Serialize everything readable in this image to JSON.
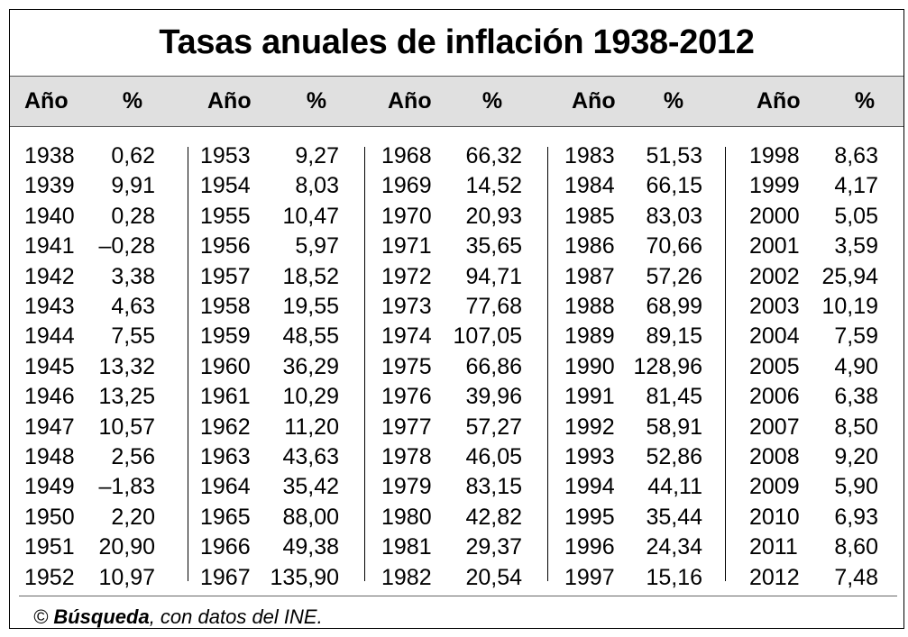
{
  "title": "Tasas anuales de inflación 1938-2012",
  "header": {
    "year_label": "Año",
    "pct_label": "%"
  },
  "columns": [
    {
      "rows": [
        {
          "year": "1938",
          "value": "0,62"
        },
        {
          "year": "1939",
          "value": "9,91"
        },
        {
          "year": "1940",
          "value": "0,28"
        },
        {
          "year": "1941",
          "value": "–0,28"
        },
        {
          "year": "1942",
          "value": "3,38"
        },
        {
          "year": "1943",
          "value": "4,63"
        },
        {
          "year": "1944",
          "value": "7,55"
        },
        {
          "year": "1945",
          "value": "13,32"
        },
        {
          "year": "1946",
          "value": "13,25"
        },
        {
          "year": "1947",
          "value": "10,57"
        },
        {
          "year": "1948",
          "value": "2,56"
        },
        {
          "year": "1949",
          "value": "–1,83"
        },
        {
          "year": "1950",
          "value": "2,20"
        },
        {
          "year": "1951",
          "value": "20,90"
        },
        {
          "year": "1952",
          "value": "10,97"
        }
      ]
    },
    {
      "rows": [
        {
          "year": "1953",
          "value": "9,27"
        },
        {
          "year": "1954",
          "value": "8,03"
        },
        {
          "year": "1955",
          "value": "10,47"
        },
        {
          "year": "1956",
          "value": "5,97"
        },
        {
          "year": "1957",
          "value": "18,52"
        },
        {
          "year": "1958",
          "value": "19,55"
        },
        {
          "year": "1959",
          "value": "48,55"
        },
        {
          "year": "1960",
          "value": "36,29"
        },
        {
          "year": "1961",
          "value": "10,29"
        },
        {
          "year": "1962",
          "value": "11,20"
        },
        {
          "year": "1963",
          "value": "43,63"
        },
        {
          "year": "1964",
          "value": "35,42"
        },
        {
          "year": "1965",
          "value": "88,00"
        },
        {
          "year": "1966",
          "value": "49,38"
        },
        {
          "year": "1967",
          "value": "135,90"
        }
      ]
    },
    {
      "rows": [
        {
          "year": "1968",
          "value": "66,32"
        },
        {
          "year": "1969",
          "value": "14,52"
        },
        {
          "year": "1970",
          "value": "20,93"
        },
        {
          "year": "1971",
          "value": "35,65"
        },
        {
          "year": "1972",
          "value": "94,71"
        },
        {
          "year": "1973",
          "value": "77,68"
        },
        {
          "year": "1974",
          "value": "107,05"
        },
        {
          "year": "1975",
          "value": "66,86"
        },
        {
          "year": "1976",
          "value": "39,96"
        },
        {
          "year": "1977",
          "value": "57,27"
        },
        {
          "year": "1978",
          "value": "46,05"
        },
        {
          "year": "1979",
          "value": "83,15"
        },
        {
          "year": "1980",
          "value": "42,82"
        },
        {
          "year": "1981",
          "value": "29,37"
        },
        {
          "year": "1982",
          "value": "20,54"
        }
      ]
    },
    {
      "rows": [
        {
          "year": "1983",
          "value": "51,53"
        },
        {
          "year": "1984",
          "value": "66,15"
        },
        {
          "year": "1985",
          "value": "83,03"
        },
        {
          "year": "1986",
          "value": "70,66"
        },
        {
          "year": "1987",
          "value": "57,26"
        },
        {
          "year": "1988",
          "value": "68,99"
        },
        {
          "year": "1989",
          "value": "89,15"
        },
        {
          "year": "1990",
          "value": "128,96"
        },
        {
          "year": "1991",
          "value": "81,45"
        },
        {
          "year": "1992",
          "value": "58,91"
        },
        {
          "year": "1993",
          "value": "52,86"
        },
        {
          "year": "1994",
          "value": "44,11"
        },
        {
          "year": "1995",
          "value": "35,44"
        },
        {
          "year": "1996",
          "value": "24,34"
        },
        {
          "year": "1997",
          "value": "15,16"
        }
      ]
    },
    {
      "rows": [
        {
          "year": "1998",
          "value": "8,63"
        },
        {
          "year": "1999",
          "value": "4,17"
        },
        {
          "year": "2000",
          "value": "5,05"
        },
        {
          "year": "2001",
          "value": "3,59"
        },
        {
          "year": "2002",
          "value": "25,94"
        },
        {
          "year": "2003",
          "value": "10,19"
        },
        {
          "year": "2004",
          "value": "7,59"
        },
        {
          "year": "2005",
          "value": "4,90"
        },
        {
          "year": "2006",
          "value": "6,38"
        },
        {
          "year": "2007",
          "value": "8,50"
        },
        {
          "year": "2008",
          "value": "9,20"
        },
        {
          "year": "2009",
          "value": "5,90"
        },
        {
          "year": "2010",
          "value": "6,93"
        },
        {
          "year": "2011",
          "value": "8,60"
        },
        {
          "year": "2012",
          "value": "7,48"
        }
      ]
    }
  ],
  "footer": {
    "copyright": "©",
    "brand": "Búsqueda",
    "rest": ", con datos del INE."
  },
  "colors": {
    "header_band": "#e0e0e0",
    "text": "#000000",
    "border": "#000000"
  }
}
